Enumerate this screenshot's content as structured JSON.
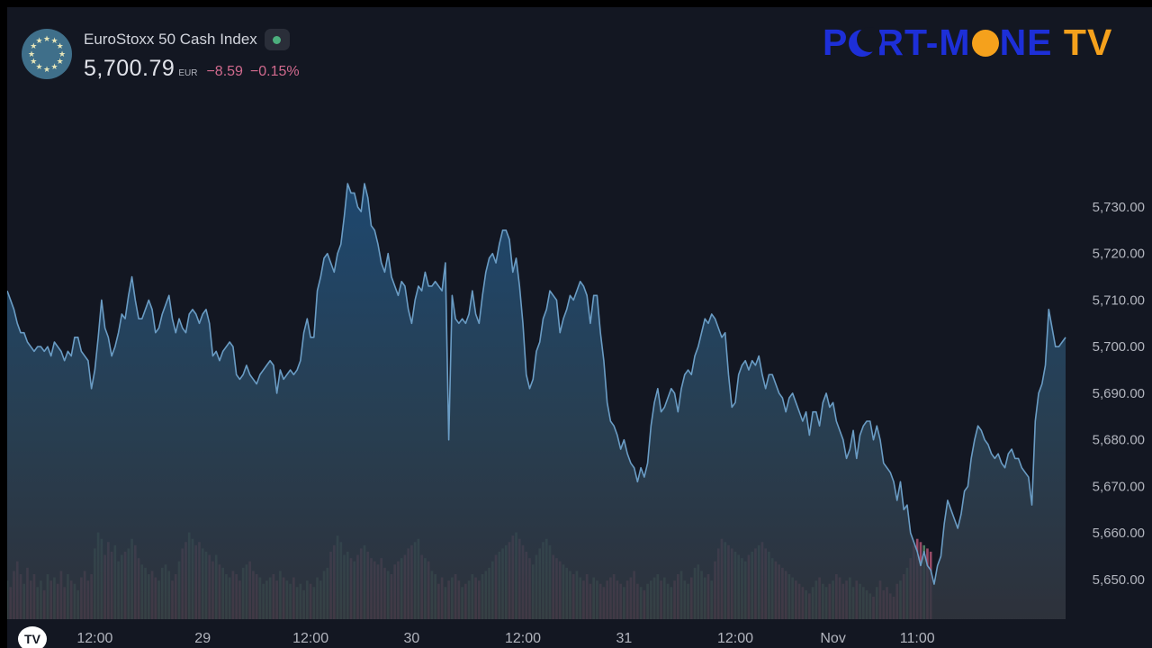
{
  "header": {
    "index_name": "EuroStoxx 50 Cash Index",
    "price": "5,700.79",
    "currency": "EUR",
    "change": "−8.59",
    "change_pct": "−0.15%",
    "market_status": "open",
    "flag_icon": "eu-flag-icon"
  },
  "brand": {
    "part1": "P",
    "part2": "RT-M",
    "part3": "NE",
    "part4": " TV"
  },
  "platform_logo": "TV",
  "colors": {
    "background": "#131722",
    "line": "#6a9cc4",
    "area_top": "#1e4a73",
    "vol_up": "#5f9e77",
    "vol_down": "#c45d7f",
    "axis_text": "#b2b5be",
    "negative": "#d16a8e",
    "brand_blue": "#1d2fd8",
    "brand_orange": "#f5a11c"
  },
  "chart_data": {
    "type": "area",
    "title": "EuroStoxx 50 Cash Index",
    "y_axis": {
      "ticks": [
        "5,730.00",
        "5,720.00",
        "5,710.00",
        "5,700.00",
        "5,690.00",
        "5,680.00",
        "5,670.00",
        "5,660.00",
        "5,650.00"
      ],
      "tick_values": [
        5730,
        5720,
        5710,
        5700,
        5690,
        5680,
        5670,
        5660,
        5650
      ],
      "ylim": [
        5643.8,
        5752.8
      ]
    },
    "x_axis": {
      "ticks": [
        {
          "label": "12:00",
          "index": 26
        },
        {
          "label": "29",
          "index": 58
        },
        {
          "label": "12:00",
          "index": 90
        },
        {
          "label": "30",
          "index": 120
        },
        {
          "label": "12:00",
          "index": 153
        },
        {
          "label": "31",
          "index": 183
        },
        {
          "label": "12:00",
          "index": 216
        },
        {
          "label": "Nov",
          "index": 245
        },
        {
          "label": "11:00",
          "index": 270
        }
      ]
    },
    "series": [
      {
        "values": [
          5712,
          5710,
          5708,
          5705,
          5703,
          5703,
          5701,
          5700,
          5699,
          5700,
          5700,
          5699,
          5700,
          5698,
          5701,
          5700,
          5699,
          5697,
          5699,
          5698,
          5702,
          5702,
          5699,
          5698,
          5697,
          5691,
          5695,
          5702,
          5710,
          5704,
          5702,
          5698,
          5700,
          5703,
          5707,
          5706,
          5711,
          5715,
          5710,
          5706,
          5706,
          5708,
          5710,
          5708,
          5703,
          5704,
          5707,
          5709,
          5711,
          5706,
          5703,
          5706,
          5704,
          5703,
          5707,
          5708,
          5707,
          5705,
          5707,
          5708,
          5705,
          5698,
          5699,
          5697,
          5699,
          5700,
          5701,
          5700,
          5694,
          5693,
          5694,
          5696,
          5694,
          5693,
          5692,
          5694,
          5695,
          5696,
          5697,
          5696,
          5690,
          5695,
          5693,
          5694,
          5695,
          5694,
          5695,
          5697,
          5703,
          5706,
          5702,
          5702,
          5712,
          5715,
          5719,
          5720,
          5718,
          5716,
          5720,
          5722,
          5728,
          5735,
          5733,
          5733,
          5730,
          5729,
          5735,
          5732,
          5726,
          5725,
          5722,
          5718,
          5716,
          5720,
          5715,
          5713,
          5711,
          5714,
          5713,
          5708,
          5705,
          5710,
          5713,
          5712,
          5716,
          5713,
          5713,
          5714,
          5713,
          5712,
          5718,
          5680,
          5711,
          5706,
          5705,
          5706,
          5705,
          5707,
          5712,
          5707,
          5705,
          5711,
          5716,
          5719,
          5720,
          5718,
          5722,
          5725,
          5725,
          5723,
          5716,
          5719,
          5713,
          5705,
          5694,
          5691,
          5693,
          5699,
          5701,
          5706,
          5708,
          5712,
          5711,
          5710,
          5703,
          5706,
          5708,
          5711,
          5710,
          5712,
          5714,
          5713,
          5711,
          5705,
          5711,
          5711,
          5703,
          5697,
          5688,
          5684,
          5683,
          5681,
          5678,
          5680,
          5677,
          5675,
          5674,
          5671,
          5674,
          5672,
          5675,
          5683,
          5688,
          5691,
          5686,
          5687,
          5689,
          5691,
          5690,
          5686,
          5691,
          5694,
          5695,
          5694,
          5698,
          5700,
          5703,
          5706,
          5705,
          5707,
          5706,
          5704,
          5702,
          5703,
          5694,
          5687,
          5688,
          5694,
          5696,
          5697,
          5695,
          5697,
          5696,
          5698,
          5694,
          5691,
          5694,
          5694,
          5692,
          5690,
          5689,
          5686,
          5689,
          5690,
          5688,
          5686,
          5684,
          5686,
          5681,
          5686,
          5686,
          5683,
          5688,
          5690,
          5687,
          5688,
          5684,
          5682,
          5680,
          5676,
          5678,
          5682,
          5676,
          5681,
          5683,
          5684,
          5684,
          5680,
          5683,
          5680,
          5675,
          5674,
          5673,
          5671,
          5667,
          5671,
          5665,
          5666,
          5660,
          5658,
          5656,
          5653,
          5656,
          5653,
          5652,
          5649,
          5653,
          5655,
          5662,
          5667,
          5665,
          5663,
          5661,
          5664,
          5669,
          5670,
          5676,
          5680,
          5683,
          5682,
          5680,
          5679,
          5677,
          5676,
          5677,
          5675,
          5674,
          5677,
          5678,
          5676,
          5676,
          5674,
          5673,
          5672,
          5666,
          5684,
          5690,
          5692,
          5696,
          5708,
          5704,
          5700,
          5700,
          5701,
          5702
        ]
      }
    ],
    "volume": [
      {
        "values": [
          12,
          10,
          15,
          18,
          14,
          11,
          16,
          12,
          14,
          10,
          12,
          9,
          14,
          12,
          13,
          11,
          15,
          10,
          14,
          12,
          11,
          9,
          13,
          15,
          12,
          14,
          22,
          27,
          25,
          20,
          24,
          21,
          23,
          18,
          20,
          21,
          22,
          25,
          23,
          19,
          17,
          16,
          14,
          15,
          13,
          12,
          16,
          17,
          15,
          12,
          14,
          18,
          22,
          24,
          27,
          25,
          23,
          24,
          22,
          21,
          20,
          18,
          20,
          17,
          16,
          14,
          13,
          15,
          14,
          12,
          16,
          17,
          18,
          15,
          14,
          13,
          11,
          12,
          13,
          14,
          12,
          15,
          13,
          12,
          11,
          13,
          10,
          11,
          9,
          12,
          11,
          10,
          13,
          12,
          15,
          16,
          21,
          23,
          26,
          24,
          20,
          21,
          19,
          18,
          20,
          22,
          23,
          21,
          19,
          18,
          17,
          19,
          16,
          15,
          14,
          17,
          18,
          19,
          20,
          22,
          23,
          24,
          25,
          20,
          19,
          18,
          15,
          14,
          11,
          13,
          10,
          12,
          13,
          14,
          12,
          10,
          11,
          12,
          14,
          13,
          12,
          14,
          15,
          16,
          18,
          20,
          21,
          22,
          23,
          24,
          26,
          27,
          25,
          23,
          21,
          19,
          17,
          20,
          22,
          24,
          25,
          23,
          20,
          19,
          18,
          17,
          16,
          15,
          14,
          15,
          13,
          12,
          14,
          11,
          13,
          12,
          11,
          10,
          12,
          13,
          14,
          12,
          11,
          10,
          12,
          13,
          15,
          11,
          10,
          9,
          11,
          12,
          13,
          14,
          12,
          13,
          11,
          10,
          12,
          14,
          15,
          12,
          11,
          13,
          16,
          17,
          15,
          13,
          14,
          12,
          18,
          22,
          25,
          24,
          23,
          22,
          21,
          20,
          19,
          18,
          20,
          21,
          22,
          23,
          24,
          22,
          21,
          19,
          18,
          17,
          16,
          15,
          14,
          13,
          12,
          11,
          10,
          9,
          8,
          10,
          12,
          13,
          11,
          10,
          11,
          12,
          14,
          13,
          11,
          12,
          13,
          10,
          12,
          11,
          10,
          9,
          8,
          7,
          10,
          12,
          9,
          10,
          8,
          7,
          11,
          12,
          14,
          16,
          19,
          23,
          25,
          24,
          23,
          22,
          21
        ]
      }
    ]
  }
}
